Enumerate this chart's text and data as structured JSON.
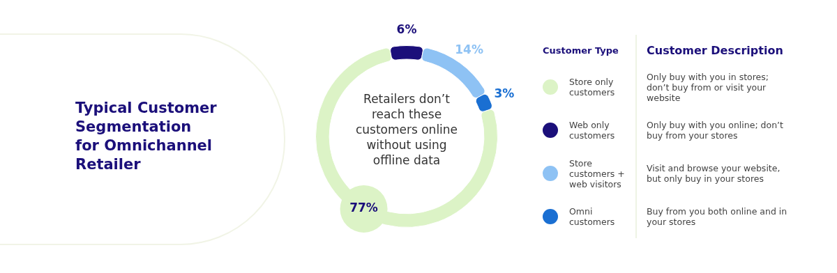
{
  "chart_data": {
    "type": "donut",
    "title": "Typical Customer Segmentation for Omnichannel Retailer",
    "categories": [
      "Store only customers",
      "Web only customers",
      "Store customers + web visitors",
      "Omni customers"
    ],
    "values": [
      77,
      6,
      14,
      3
    ],
    "colors": [
      "#dcf3c6",
      "#1b0f7a",
      "#8ec2f4",
      "#1a6fd2"
    ],
    "value_labels": [
      "77%",
      "6%",
      "14%",
      "3%"
    ],
    "legend": "right",
    "legend_title": "Customer Type",
    "annotations": [
      "Retailers don’t reach these customers online without using offline data",
      "Customer Description",
      "Only buy with you in stores; don’t buy from or visit your website",
      "Only buy with you online; don’t buy from your stores",
      "Visit and browse your website, but only buy in your stores",
      "Buy from you both online and in your stores"
    ]
  }
}
